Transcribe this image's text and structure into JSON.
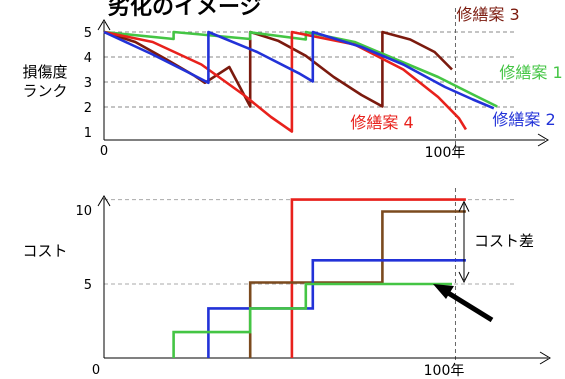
{
  "heading": "劣化のイメージ",
  "chart_data": [
    {
      "type": "line",
      "ylabel_lines": [
        "損傷度",
        "ランク"
      ],
      "xlim": [
        0,
        120
      ],
      "ylim": [
        1,
        5
      ],
      "yticks": [
        "1",
        "2",
        "3",
        "4",
        "5"
      ],
      "xtick_zero": "0",
      "xtick_end": "100年",
      "grid_y": [
        2,
        3,
        4,
        5
      ],
      "marker_year": 101,
      "series": [
        {
          "name": "修繕案 3",
          "color": "#7b1a0e",
          "points": [
            [
              0,
              5
            ],
            [
              9,
              4.6
            ],
            [
              18,
              3.9
            ],
            [
              26,
              3.25
            ],
            [
              29,
              2.97
            ],
            [
              29,
              2.97
            ],
            [
              36,
              3.6
            ],
            [
              42,
              2.02
            ],
            [
              42,
              5
            ],
            [
              50,
              4.65
            ],
            [
              58,
              4.05
            ],
            [
              66,
              3.2
            ],
            [
              74,
              2.48
            ],
            [
              80,
              2.02
            ],
            [
              80,
              5
            ],
            [
              88,
              4.7
            ],
            [
              95,
              4.2
            ],
            [
              100,
              3.5
            ]
          ]
        },
        {
          "name": "修繕案 1",
          "color": "#44c544",
          "points": [
            [
              0,
              5
            ],
            [
              20,
              4.72
            ],
            [
              20,
              5
            ],
            [
              42,
              4.72
            ],
            [
              42,
              4.99
            ],
            [
              58,
              4.7
            ],
            [
              58,
              5
            ],
            [
              72,
              4.6
            ],
            [
              84,
              3.9
            ],
            [
              96,
              3.2
            ],
            [
              106,
              2.5
            ],
            [
              113,
              2.02
            ]
          ]
        },
        {
          "name": "修繕案 4",
          "color": "#e8211c",
          "points": [
            [
              0,
              5
            ],
            [
              14,
              4.6
            ],
            [
              28,
              3.7
            ],
            [
              40,
              2.5
            ],
            [
              48,
              1.6
            ],
            [
              54,
              1.02
            ],
            [
              54,
              5
            ],
            [
              72,
              4.5
            ],
            [
              86,
              3.5
            ],
            [
              96,
              2.4
            ],
            [
              102,
              1.55
            ],
            [
              104,
              1.1
            ]
          ]
        },
        {
          "name": "修繕案 2",
          "color": "#2232d8",
          "points": [
            [
              0,
              5
            ],
            [
              14,
              4.1
            ],
            [
              24,
              3.4
            ],
            [
              30,
              2.97
            ],
            [
              30,
              5
            ],
            [
              44,
              4.2
            ],
            [
              56,
              3.35
            ],
            [
              60,
              3.02
            ],
            [
              60,
              5
            ],
            [
              74,
              4.4
            ],
            [
              86,
              3.7
            ],
            [
              98,
              2.8
            ],
            [
              106,
              2.3
            ],
            [
              112,
              1.95
            ]
          ]
        }
      ]
    },
    {
      "type": "line",
      "ylabel": "コスト",
      "xlim": [
        0,
        120
      ],
      "ylim": [
        0,
        11.6
      ],
      "yticks": [
        "5",
        "10"
      ],
      "xtick_zero": "0",
      "xtick_end": "100年",
      "grid_y": [
        5,
        10.7
      ],
      "marker_year": 101,
      "annotation": "コスト差",
      "series": [
        {
          "name": "修繕案 4",
          "color": "#e8211c",
          "points": [
            [
              54,
              0
            ],
            [
              54,
              10.7
            ],
            [
              104,
              10.7
            ]
          ]
        },
        {
          "name": "修繕案 3",
          "color": "#7b4a1e",
          "points": [
            [
              42,
              0
            ],
            [
              42,
              5.1
            ],
            [
              80,
              5.1
            ],
            [
              80,
              9.9
            ],
            [
              104,
              9.9
            ]
          ]
        },
        {
          "name": "修繕案 2",
          "color": "#2232d8",
          "points": [
            [
              30,
              0
            ],
            [
              30,
              3.35
            ],
            [
              60,
              3.35
            ],
            [
              60,
              6.6
            ],
            [
              104,
              6.6
            ]
          ]
        },
        {
          "name": "修繕案 1",
          "color": "#44c544",
          "points": [
            [
              20,
              0
            ],
            [
              20,
              1.75
            ],
            [
              42,
              1.75
            ],
            [
              42,
              3.35
            ],
            [
              58,
              3.35
            ],
            [
              58,
              5.0
            ],
            [
              100,
              5.0
            ]
          ]
        }
      ]
    }
  ]
}
